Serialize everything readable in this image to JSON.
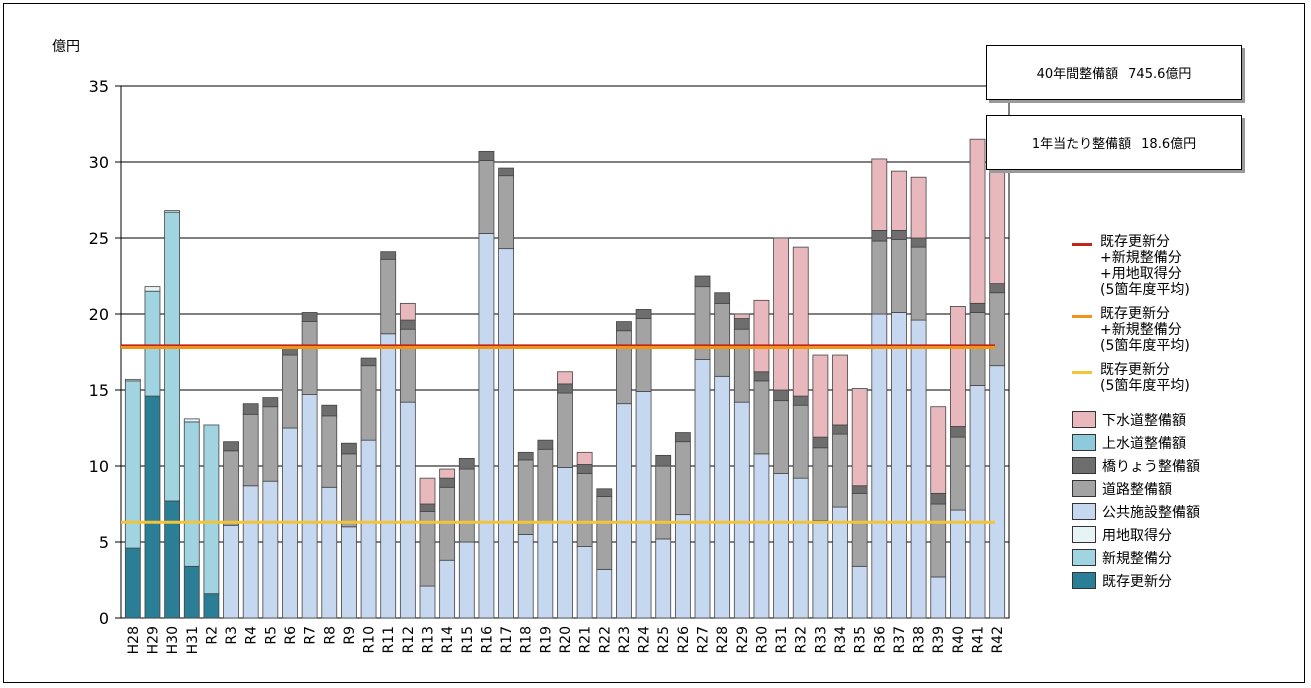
{
  "chart_data": {
    "type": "bar",
    "stacked": true,
    "ylabel": "億円",
    "ylim": [
      0,
      35
    ],
    "yticks": [
      0,
      5,
      10,
      15,
      20,
      25,
      30,
      35
    ],
    "grid": "horizontal",
    "legend_position": "right",
    "categories": [
      "H28",
      "H29",
      "H30",
      "H31",
      "R2",
      "R3",
      "R4",
      "R5",
      "R6",
      "R7",
      "R8",
      "R9",
      "R10",
      "R11",
      "R12",
      "R13",
      "R14",
      "R15",
      "R16",
      "R17",
      "R18",
      "R19",
      "R20",
      "R21",
      "R22",
      "R23",
      "R24",
      "R25",
      "R26",
      "R27",
      "R28",
      "R29",
      "R30",
      "R31",
      "R32",
      "R33",
      "R34",
      "R35",
      "R36",
      "R37",
      "R38",
      "R39",
      "R40",
      "R41",
      "R42"
    ],
    "series": [
      {
        "name": "既存更新分",
        "color": "#2a7e96",
        "values": [
          4.6,
          14.6,
          7.7,
          3.4,
          1.6,
          0,
          0,
          0,
          0,
          0,
          0,
          0,
          0,
          0,
          0,
          0,
          0,
          0,
          0,
          0,
          0,
          0,
          0,
          0,
          0,
          0,
          0,
          0,
          0,
          0,
          0,
          0,
          0,
          0,
          0,
          0,
          0,
          0,
          0,
          0,
          0,
          0,
          0,
          0,
          0
        ]
      },
      {
        "name": "新規整備分",
        "color": "#9fd4e0",
        "values": [
          11.0,
          6.9,
          19.0,
          9.5,
          11.1,
          0,
          0,
          0,
          0,
          0,
          0,
          0,
          0,
          0,
          0,
          0,
          0,
          0,
          0,
          0,
          0,
          0,
          0,
          0,
          0,
          0,
          0,
          0,
          0,
          0,
          0,
          0,
          0,
          0,
          0,
          0,
          0,
          0,
          0,
          0,
          0,
          0,
          0,
          0,
          0
        ]
      },
      {
        "name": "用地取得分",
        "color": "#e6f4f8",
        "values": [
          0.1,
          0.3,
          0.1,
          0.2,
          0,
          0,
          0,
          0,
          0,
          0,
          0,
          0,
          0,
          0,
          0,
          0,
          0,
          0,
          0,
          0,
          0,
          0,
          0,
          0,
          0,
          0,
          0,
          0,
          0,
          0,
          0,
          0,
          0,
          0,
          0,
          0,
          0,
          0,
          0,
          0,
          0,
          0,
          0,
          0,
          0
        ]
      },
      {
        "name": "公共施設整備額",
        "color": "#c6d7f0",
        "values": [
          0,
          0,
          0,
          0,
          0,
          6.1,
          8.7,
          9.0,
          12.5,
          14.7,
          8.6,
          6.0,
          11.7,
          18.7,
          14.2,
          2.1,
          3.8,
          5.0,
          25.3,
          24.3,
          5.5,
          6.3,
          9.9,
          4.7,
          3.2,
          14.1,
          14.9,
          5.2,
          6.8,
          17.0,
          15.9,
          14.2,
          10.8,
          9.5,
          9.2,
          6.4,
          7.3,
          3.4,
          20.0,
          20.1,
          19.6,
          2.7,
          7.1,
          15.3,
          16.6
        ]
      },
      {
        "name": "道路整備額",
        "color": "#a3a3a3",
        "values": [
          0,
          0,
          0,
          0,
          0,
          4.9,
          4.7,
          4.9,
          4.8,
          4.8,
          4.7,
          4.8,
          4.9,
          4.9,
          4.8,
          4.9,
          4.8,
          4.8,
          4.8,
          4.8,
          4.9,
          4.8,
          4.9,
          4.8,
          4.8,
          4.8,
          4.8,
          4.8,
          4.8,
          4.8,
          4.8,
          4.8,
          4.8,
          4.8,
          4.8,
          4.8,
          4.8,
          4.8,
          4.8,
          4.8,
          4.8,
          4.8,
          4.8,
          4.8,
          4.8
        ]
      },
      {
        "name": "橋りょう整備額",
        "color": "#6e6e6e",
        "values": [
          0,
          0,
          0,
          0,
          0,
          0.6,
          0.7,
          0.6,
          0.5,
          0.6,
          0.7,
          0.7,
          0.5,
          0.5,
          0.6,
          0.5,
          0.6,
          0.7,
          0.6,
          0.5,
          0.5,
          0.6,
          0.6,
          0.6,
          0.5,
          0.6,
          0.6,
          0.7,
          0.6,
          0.7,
          0.7,
          0.7,
          0.6,
          0.7,
          0.6,
          0.7,
          0.6,
          0.5,
          0.7,
          0.6,
          0.6,
          0.7,
          0.7,
          0.6,
          0.6
        ]
      },
      {
        "name": "上水道整備額",
        "color": "#8ec9dc",
        "values": [
          0,
          0,
          0,
          0,
          0,
          0,
          0,
          0,
          0,
          0,
          0,
          0,
          0,
          0,
          0,
          0,
          0,
          0,
          0,
          0,
          0,
          0,
          0,
          0,
          0,
          0,
          0,
          0,
          0,
          0,
          0,
          0,
          0,
          0,
          0,
          0,
          0,
          0,
          0,
          0,
          0,
          0,
          0,
          0,
          0
        ]
      },
      {
        "name": "下水道整備額",
        "color": "#e8b8bc",
        "values": [
          0,
          0,
          0,
          0,
          0,
          0,
          0,
          0,
          0,
          0,
          0,
          0,
          0,
          0,
          1.1,
          1.7,
          0.6,
          0,
          0,
          0,
          0,
          0,
          0.8,
          0.8,
          0,
          0,
          0,
          0,
          0,
          0,
          0,
          0.3,
          4.7,
          10.0,
          9.8,
          5.4,
          4.6,
          6.4,
          4.7,
          3.9,
          4.0,
          5.7,
          7.9,
          10.8,
          8.7
        ]
      }
    ],
    "reference_lines": [
      {
        "name": "既存更新分+新規整備分+用地取得分(5箇年度平均)",
        "color": "#c0261c",
        "value": 17.9
      },
      {
        "name": "既存更新分+新規整備分(5箇年度平均)",
        "color": "#f29418",
        "value": 17.8
      },
      {
        "name": "既存更新分(5箇年度平均)",
        "color": "#f3c33a",
        "value": 6.3
      }
    ]
  },
  "info": {
    "total_label": "40年間整備額",
    "total_value": "745.6億円",
    "annual_label": "1年当たり整備額",
    "annual_value": "18.6億円"
  },
  "legend": {
    "lines": [
      {
        "lines": [
          "既存更新分",
          "+新規整備分",
          "+用地取得分",
          "(5箇年度平均)"
        ],
        "color": "#c0261c"
      },
      {
        "lines": [
          "既存更新分",
          "+新規整備分",
          "(5箇年度平均)"
        ],
        "color": "#f29418"
      },
      {
        "lines": [
          "既存更新分",
          "(5箇年度平均)"
        ],
        "color": "#f3c33a"
      }
    ],
    "boxes": [
      {
        "label": "下水道整備額",
        "color": "#e8b8bc"
      },
      {
        "label": "上水道整備額",
        "color": "#8ec9dc"
      },
      {
        "label": "橋りょう整備額",
        "color": "#6e6e6e"
      },
      {
        "label": "道路整備額",
        "color": "#a3a3a3"
      },
      {
        "label": "公共施設整備額",
        "color": "#c6d7f0"
      },
      {
        "label": "用地取得分",
        "color": "#e6f4f8"
      },
      {
        "label": "新規整備分",
        "color": "#9fd4e0"
      },
      {
        "label": "既存更新分",
        "color": "#2a7e96"
      }
    ]
  }
}
